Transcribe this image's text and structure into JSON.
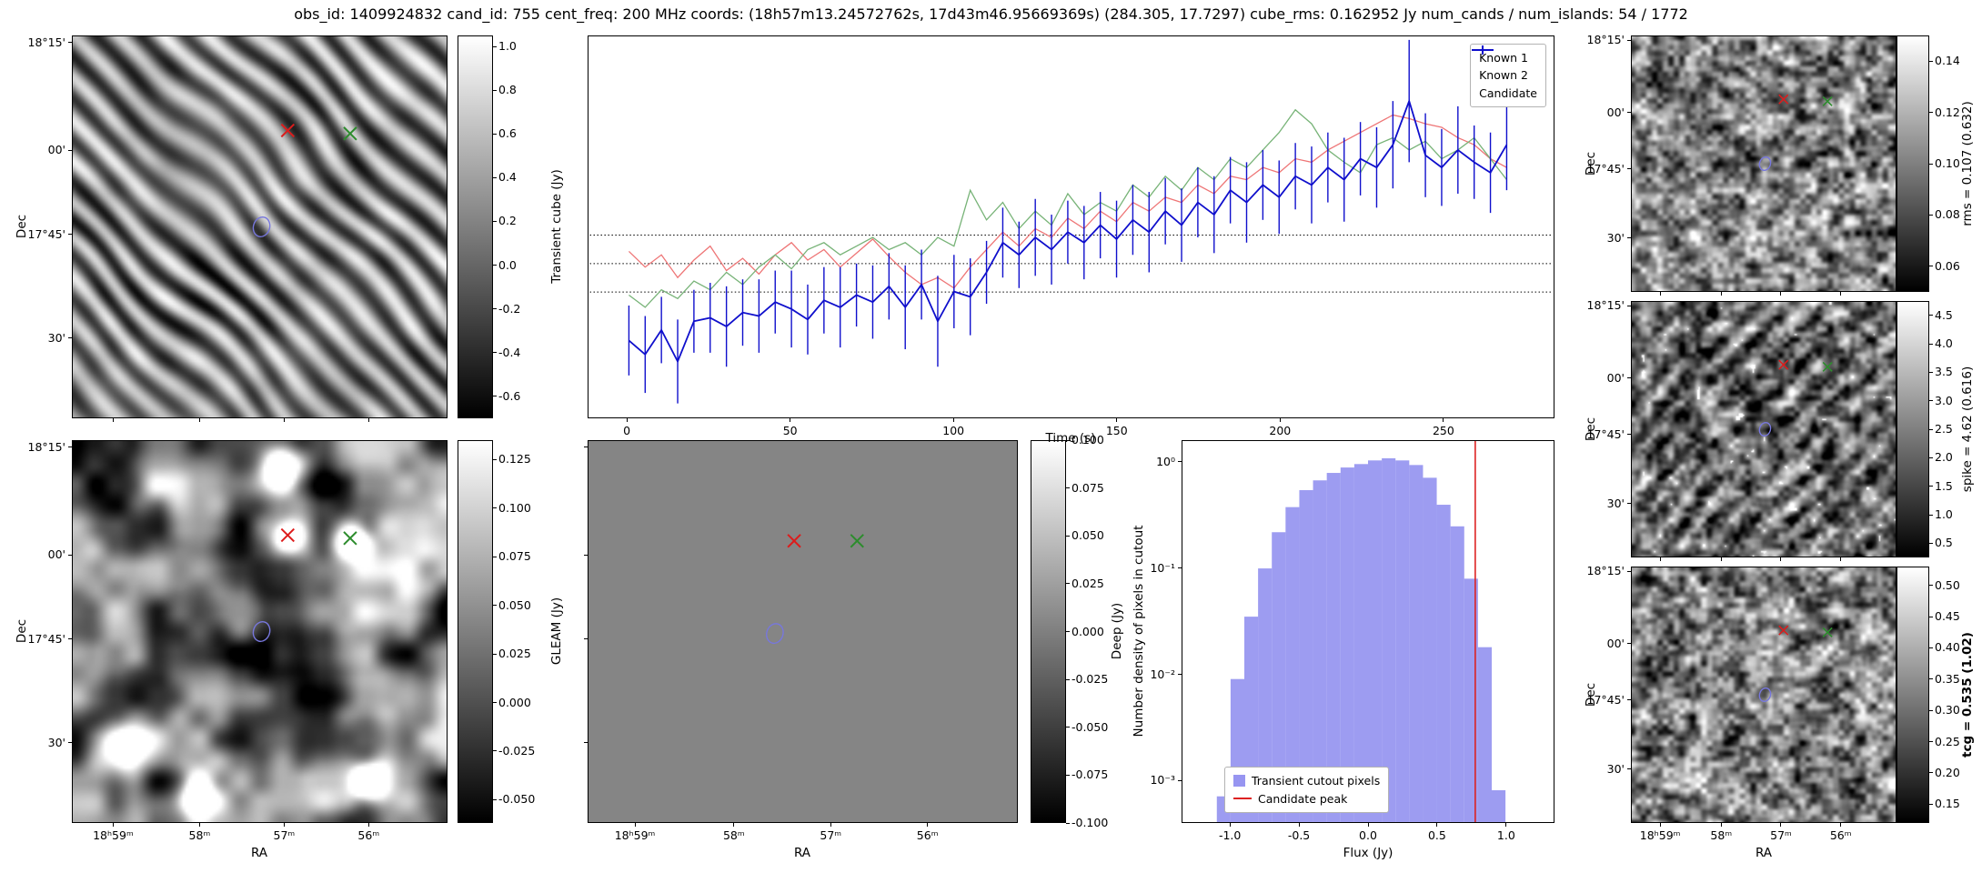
{
  "title": "obs_id: 1409924832 cand_id: 755 cent_freq: 200 MHz coords: (18h57m13.24572762s, 17d43m46.95669369s) (284.305, 17.7297) cube_rms: 0.162952 Jy num_cands / num_islands: 54 / 1772",
  "colors": {
    "background": "#ffffff",
    "known1": "#ee7576",
    "known2": "#77b377",
    "candidate": "#0f0fcc",
    "red_marker": "#dd1c1c",
    "green_marker": "#2d8c2d",
    "contour": "#7777dd",
    "hist_fill": "#8583ee",
    "peak_line": "#dd2222"
  },
  "axis_labels": {
    "dec": "Dec",
    "ra": "RA"
  },
  "dec_ticks": [
    "18°15'",
    "00'",
    "17°45'",
    "30'"
  ],
  "ra_ticks": [
    "18ʰ59ᵐ",
    "58ᵐ",
    "57ᵐ",
    "56ᵐ"
  ],
  "colorbars": {
    "transient": {
      "label": "Transient cube (Jy)",
      "vmin": -0.7,
      "vmax": 1.05,
      "ticks": [
        "1.0",
        "0.8",
        "0.6",
        "0.4",
        "0.2",
        "0.0",
        "-0.2",
        "-0.4",
        "-0.6"
      ]
    },
    "gleam": {
      "label": "GLEAM (Jy)",
      "vmin": -0.062,
      "vmax": 0.135,
      "ticks": [
        "0.125",
        "0.100",
        "0.075",
        "0.050",
        "0.025",
        "0.000",
        "-0.025",
        "-0.050"
      ]
    },
    "deep": {
      "label": "Deep (Jy)",
      "vmin": -0.1,
      "vmax": 0.1,
      "ticks": [
        "0.100",
        "0.075",
        "0.050",
        "0.025",
        "0.000",
        "-0.025",
        "-0.050",
        "-0.075",
        "-0.100"
      ]
    },
    "rms": {
      "label": "rms = 0.107 (0.632)",
      "vmin": 0.05,
      "vmax": 0.15,
      "ticks": [
        "0.14",
        "0.12",
        "0.10",
        "0.08",
        "0.06"
      ]
    },
    "spike": {
      "label": "spike = 4.62 (0.616)",
      "vmin": 0.25,
      "vmax": 4.75,
      "ticks": [
        "4.5",
        "4.0",
        "3.5",
        "3.0",
        "2.5",
        "2.0",
        "1.5",
        "1.0",
        "0.5"
      ]
    },
    "tcg": {
      "label": "tcg = 0.535 (1.02)",
      "bold": true,
      "vmin": 0.12,
      "vmax": 0.53,
      "ticks": [
        "0.50",
        "0.45",
        "0.40",
        "0.35",
        "0.30",
        "0.25",
        "0.20",
        "0.15"
      ]
    }
  },
  "markers": {
    "default": {
      "red_x": [
        0.575,
        0.247
      ],
      "green_x": [
        0.742,
        0.255
      ],
      "contour": [
        0.505,
        0.5
      ]
    },
    "deep": {
      "red_x": [
        0.48,
        0.262
      ],
      "green_x": [
        0.627,
        0.262
      ],
      "contour": [
        0.435,
        0.505
      ]
    }
  },
  "cutouts": [
    {
      "id": "transient",
      "style": "diagonal-stripes",
      "seed": 11,
      "markers": "default"
    },
    {
      "id": "gleam",
      "style": "smooth-blobs",
      "seed": 23,
      "markers": "default",
      "bright_sources": [
        [
          0.55,
          0.06,
          1.3,
          4
        ],
        [
          0.575,
          0.247,
          1.0,
          3
        ],
        [
          0.742,
          0.255,
          1.2,
          3.5
        ],
        [
          0.13,
          0.8,
          1.35,
          5
        ],
        [
          0.79,
          0.89,
          1.1,
          4
        ],
        [
          0.33,
          0.94,
          0.9,
          3.5
        ]
      ]
    },
    {
      "id": "deep",
      "style": "flat",
      "level": 0.52,
      "markers": "deep"
    },
    {
      "id": "rms",
      "style": "fine-grain",
      "seed": 37,
      "markers": "default"
    },
    {
      "id": "spike",
      "style": "fine-streaks",
      "seed": 53,
      "markers": "default"
    },
    {
      "id": "tcg",
      "style": "fine-grain",
      "seed": 71,
      "markers": "default"
    }
  ],
  "chart_data": [
    {
      "type": "line",
      "name": "candidate-lightcurve",
      "xlabel": "Time (s)",
      "ylabel": "Transient cube (Jy)",
      "xlim": [
        -12,
        284
      ],
      "ylim": [
        -0.88,
        1.3
      ],
      "xticks": [
        0,
        50,
        100,
        150,
        200,
        250
      ],
      "hlines": [
        0.162952,
        0,
        -0.162952
      ],
      "legend": [
        "Known 1",
        "Known 2",
        "Candidate"
      ],
      "x": [
        0,
        5,
        10,
        15,
        20,
        25,
        30,
        35,
        40,
        45,
        50,
        55,
        60,
        65,
        70,
        75,
        80,
        85,
        90,
        95,
        100,
        105,
        110,
        115,
        120,
        125,
        130,
        135,
        140,
        145,
        150,
        155,
        160,
        165,
        170,
        175,
        180,
        185,
        190,
        195,
        200,
        205,
        210,
        215,
        220,
        225,
        230,
        235,
        240,
        245,
        250,
        255,
        260,
        265,
        270
      ],
      "series": [
        {
          "name": "Known 1",
          "values": [
            0.07,
            -0.02,
            0.05,
            -0.08,
            0.02,
            0.1,
            -0.04,
            0.03,
            -0.06,
            0.05,
            0.12,
            0.02,
            0.08,
            -0.02,
            0.06,
            0.14,
            0.04,
            -0.05,
            -0.12,
            -0.08,
            -0.14,
            -0.02,
            0.08,
            0.18,
            0.1,
            0.2,
            0.15,
            0.26,
            0.2,
            0.3,
            0.24,
            0.35,
            0.3,
            0.38,
            0.35,
            0.45,
            0.4,
            0.5,
            0.48,
            0.55,
            0.52,
            0.6,
            0.58,
            0.65,
            0.7,
            0.75,
            0.8,
            0.85,
            0.83,
            0.8,
            0.78,
            0.72,
            0.68,
            0.6,
            0.55
          ]
        },
        {
          "name": "Known 2",
          "values": [
            -0.18,
            -0.25,
            -0.15,
            -0.2,
            -0.1,
            -0.15,
            -0.05,
            -0.12,
            -0.02,
            0.05,
            -0.03,
            0.08,
            0.12,
            0.05,
            0.1,
            0.15,
            0.08,
            0.12,
            0.05,
            0.15,
            0.1,
            0.42,
            0.25,
            0.35,
            0.2,
            0.3,
            0.22,
            0.4,
            0.28,
            0.35,
            0.3,
            0.45,
            0.38,
            0.5,
            0.42,
            0.55,
            0.48,
            0.6,
            0.55,
            0.65,
            0.75,
            0.88,
            0.8,
            0.65,
            0.58,
            0.52,
            0.68,
            0.72,
            0.65,
            0.7,
            0.6,
            0.65,
            0.72,
            0.6,
            0.48
          ]
        },
        {
          "name": "Candidate",
          "values": [
            -0.44,
            -0.52,
            -0.38,
            -0.56,
            -0.33,
            -0.31,
            -0.36,
            -0.28,
            -0.3,
            -0.22,
            -0.26,
            -0.32,
            -0.21,
            -0.25,
            -0.18,
            -0.22,
            -0.13,
            -0.25,
            -0.12,
            -0.33,
            -0.16,
            -0.19,
            -0.05,
            0.12,
            0.05,
            0.15,
            0.08,
            0.18,
            0.12,
            0.22,
            0.14,
            0.25,
            0.18,
            0.3,
            0.22,
            0.35,
            0.28,
            0.42,
            0.35,
            0.45,
            0.38,
            0.5,
            0.45,
            0.55,
            0.48,
            0.6,
            0.55,
            0.68,
            0.93,
            0.62,
            0.55,
            0.65,
            0.58,
            0.52,
            0.68
          ],
          "errors": [
            0.2,
            0.22,
            0.19,
            0.24,
            0.18,
            0.2,
            0.23,
            0.19,
            0.21,
            0.18,
            0.22,
            0.2,
            0.19,
            0.23,
            0.18,
            0.21,
            0.19,
            0.24,
            0.2,
            0.26,
            0.21,
            0.22,
            0.18,
            0.2,
            0.19,
            0.22,
            0.2,
            0.18,
            0.21,
            0.19,
            0.22,
            0.2,
            0.23,
            0.19,
            0.21,
            0.2,
            0.22,
            0.19,
            0.23,
            0.2,
            0.21,
            0.19,
            0.22,
            0.2,
            0.24,
            0.21,
            0.23,
            0.25,
            0.35,
            0.24,
            0.22,
            0.25,
            0.21,
            0.23,
            0.26
          ]
        }
      ]
    },
    {
      "type": "bar",
      "name": "flux-histogram",
      "xlabel": "Flux (Jy)",
      "ylabel": "Number density of pixels in cutout",
      "yscale": "log",
      "xlim": [
        -1.35,
        1.35
      ],
      "ylim_log": [
        0.0004,
        1.6
      ],
      "xticks": [
        "-1.0",
        "-0.5",
        "0.0",
        "0.5",
        "1.0"
      ],
      "yticks": [
        "10⁰",
        "10⁻¹",
        "10⁻²",
        "10⁻³"
      ],
      "ytick_values": [
        1,
        0.1,
        0.01,
        0.001
      ],
      "bin_width": 0.1,
      "bin_centers": [
        -1.05,
        -0.95,
        -0.85,
        -0.75,
        -0.65,
        -0.55,
        -0.45,
        -0.35,
        -0.25,
        -0.15,
        -0.05,
        0.05,
        0.15,
        0.25,
        0.35,
        0.45,
        0.55,
        0.65,
        0.75,
        0.85,
        0.95
      ],
      "values": [
        0.0007,
        0.009,
        0.035,
        0.1,
        0.22,
        0.38,
        0.55,
        0.68,
        0.8,
        0.9,
        0.97,
        1.05,
        1.1,
        1.05,
        0.95,
        0.72,
        0.4,
        0.25,
        0.08,
        0.018,
        0.0008
      ],
      "candidate_peak": 0.78,
      "legend": [
        "Transient cutout pixels",
        "Candidate peak"
      ]
    }
  ]
}
